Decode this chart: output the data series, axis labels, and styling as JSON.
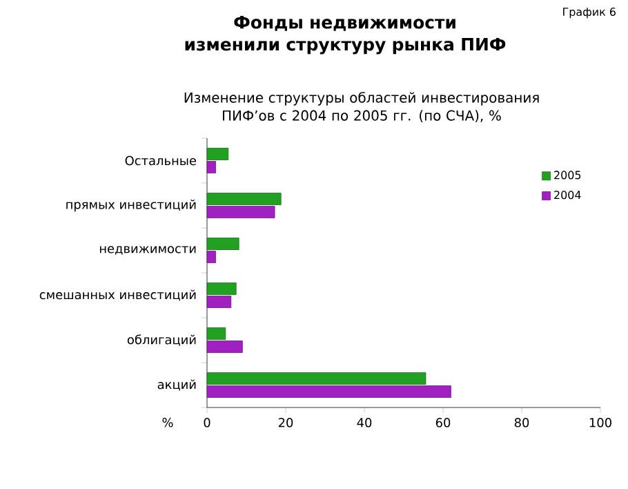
{
  "chart_data": {
    "type": "bar",
    "orientation": "horizontal",
    "title": "Фонды недвижимости изменили структуру рынка ПИФ",
    "subtitle": "Изменение структуры областей инвестирования ПИФ’ов с 2004 по 2005 гг. (по СЧА), %",
    "xlabel": "%",
    "annotations": [
      "График 6"
    ],
    "categories": [
      "Остальные",
      "прямых инвестиций",
      "недвижимости",
      "смешанных инвестиций",
      "облигаций",
      "акций"
    ],
    "series": [
      {
        "name": "2005",
        "color": "#22a022",
        "values": [
          5.4,
          18.8,
          8.1,
          7.4,
          4.7,
          55.6
        ]
      },
      {
        "name": "2004",
        "color": "#a020c0",
        "values": [
          2.2,
          17.2,
          2.2,
          6.1,
          9.0,
          62.0
        ]
      }
    ],
    "xlim": [
      0,
      100
    ],
    "xticks": [
      0,
      20,
      40,
      60,
      80,
      100
    ],
    "legend": "top right"
  }
}
